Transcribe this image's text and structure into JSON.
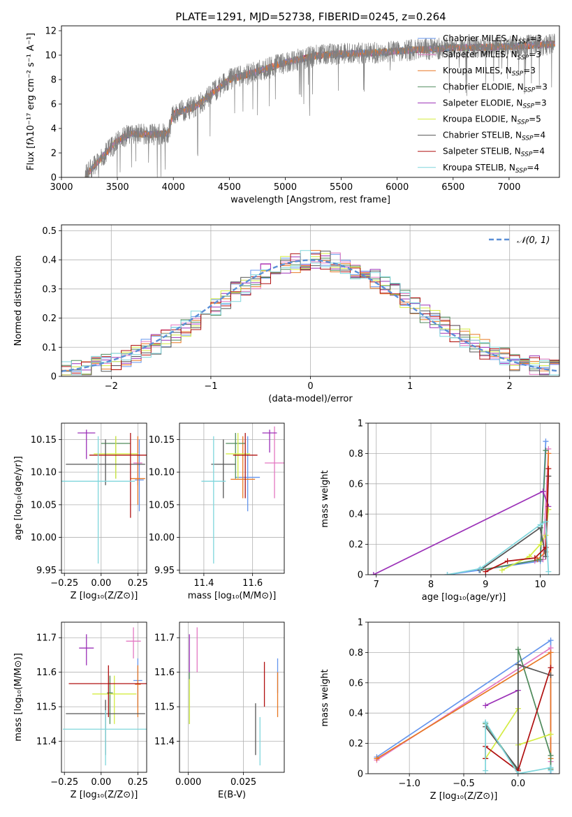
{
  "figure_title": "PLATE=1291, MJD=52738, FIBERID=0245, z=0.264",
  "models": [
    {
      "name": "Chabrier MILES",
      "nssp": "3",
      "color": "#6495ed"
    },
    {
      "name": "Salpeter MILES",
      "nssp": "3",
      "color": "#e377c2"
    },
    {
      "name": "Kroupa MILES",
      "nssp": "3",
      "color": "#e87722"
    },
    {
      "name": "Chabrier ELODIE",
      "nssp": "3",
      "color": "#4f8a5b"
    },
    {
      "name": "Salpeter ELODIE",
      "nssp": "3",
      "color": "#9b30b7"
    },
    {
      "name": "Kroupa ELODIE",
      "nssp": "5",
      "color": "#d4ec42"
    },
    {
      "name": "Chabrier STELIB",
      "nssp": "4",
      "color": "#555555"
    },
    {
      "name": "Salpeter STELIB",
      "nssp": "4",
      "color": "#b01010"
    },
    {
      "name": "Kroupa STELIB",
      "nssp": "4",
      "color": "#7fd6dc"
    }
  ],
  "chart_data": [
    {
      "id": "spectrum",
      "type": "line",
      "xlabel": "wavelength [Angstrom, rest frame]",
      "ylabel": "Flux [fλ10⁻¹⁷ erg cm⁻² s⁻¹ A⁻¹]",
      "xlim": [
        3000,
        7450
      ],
      "ylim": [
        0,
        12.4
      ],
      "xticks": [
        3000,
        3500,
        4000,
        4500,
        5000,
        5500,
        6000,
        6500,
        7000
      ],
      "yticks": [
        0,
        2,
        4,
        6,
        8,
        10,
        12
      ],
      "grid": false,
      "legend": "right",
      "continuum": {
        "x": [
          3210,
          3500,
          3620,
          3800,
          3950,
          4000,
          4200,
          4500,
          4800,
          5000,
          5300,
          5500,
          5800,
          6100,
          6500,
          7000,
          7410
        ],
        "y": [
          0.1,
          3.0,
          3.6,
          3.5,
          3.6,
          5.2,
          5.8,
          8.0,
          8.8,
          9.4,
          10.0,
          10.1,
          10.2,
          10.4,
          10.6,
          10.7,
          10.9
        ]
      }
    },
    {
      "id": "residuals",
      "type": "line",
      "xlabel": "(data-model)/error",
      "ylabel": "Normed distribution",
      "xlim": [
        -2.5,
        2.5
      ],
      "ylim": [
        0,
        0.52
      ],
      "xticks": [
        -2,
        -1,
        0,
        1,
        2
      ],
      "yticks": [
        0,
        0.1,
        0.2,
        0.3,
        0.4,
        0.5
      ],
      "grid": true,
      "legend": "top-right",
      "legend_label": "𝒩(0, 1)",
      "gauss_color": "#5b8fd6"
    },
    {
      "id": "age_Z",
      "type": "scatter",
      "xlabel": "Z [log₁₀(Z/Z⊙)]",
      "ylabel": "age  [log₁₀(age/yr)]",
      "xlim": [
        -0.27,
        0.31
      ],
      "ylim": [
        9.945,
        10.175
      ],
      "xticks": [
        -0.25,
        0.0,
        0.25
      ],
      "xticklabels": [
        "−0.25",
        "0.00",
        "0.25"
      ],
      "yticks": [
        9.95,
        10.0,
        10.05,
        10.1,
        10.15
      ],
      "yticklabels": [
        "9.95",
        "10.00",
        "10.05",
        "10.10",
        "10.15"
      ],
      "grid": true,
      "points": [
        {
          "x": 0.26,
          "y": 10.088,
          "xerr": 0.03,
          "ye": [
            10.04,
            10.15
          ]
        },
        {
          "x": 0.25,
          "y": 10.114,
          "xerr": 0.03,
          "ye": [
            10.08,
            10.15
          ]
        },
        {
          "x": 0.25,
          "y": 10.09,
          "xerr": 0.05,
          "ye": [
            10.05,
            10.155
          ]
        },
        {
          "x": 0.1,
          "y": 10.144,
          "xerr": 0.1,
          "ye": [
            10.09,
            10.155
          ]
        },
        {
          "x": -0.1,
          "y": 10.16,
          "xerr": 0.06,
          "ye": [
            10.12,
            10.165
          ]
        },
        {
          "x": 0.1,
          "y": 10.128,
          "xerr": 0.15,
          "ye": [
            10.09,
            10.155
          ]
        },
        {
          "x": 0.03,
          "y": 10.112,
          "xerr": 0.27,
          "ye": [
            10.08,
            10.15
          ]
        },
        {
          "x": 0.2,
          "y": 10.126,
          "xerr": 0.28,
          "ye": [
            10.03,
            10.16
          ]
        },
        {
          "x": -0.02,
          "y": 10.086,
          "xerr": 0.25,
          "ye": [
            9.96,
            10.155
          ]
        }
      ]
    },
    {
      "id": "age_mass",
      "type": "scatter",
      "xlabel": "mass [log₁₀(M/M⊙)]",
      "ylabel": "",
      "xlim": [
        11.3,
        11.73
      ],
      "ylim": [
        9.945,
        10.175
      ],
      "xticks": [
        11.4,
        11.6
      ],
      "xticklabels": [
        "11.4",
        "11.6"
      ],
      "yticks": [
        9.95,
        10.0,
        10.05,
        10.1,
        10.15
      ],
      "yticklabels": [
        "9.95",
        "10.00",
        "10.05",
        "10.10",
        "10.15"
      ],
      "grid": true,
      "points": [
        {
          "x": 11.58,
          "y": 10.092,
          "xerr": 0.05,
          "ye": [
            10.04,
            10.155
          ]
        },
        {
          "x": 11.69,
          "y": 10.114,
          "xerr": 0.04,
          "ye": [
            10.06,
            10.17
          ]
        },
        {
          "x": 11.56,
          "y": 10.089,
          "xerr": 0.05,
          "ye": [
            10.06,
            10.155
          ]
        },
        {
          "x": 11.53,
          "y": 10.144,
          "xerr": 0.04,
          "ye": [
            10.09,
            10.16
          ]
        },
        {
          "x": 11.67,
          "y": 10.16,
          "xerr": 0.03,
          "ye": [
            10.13,
            10.165
          ]
        },
        {
          "x": 11.54,
          "y": 10.128,
          "xerr": 0.05,
          "ye": [
            10.09,
            10.16
          ]
        },
        {
          "x": 11.48,
          "y": 10.112,
          "xerr": 0.05,
          "ye": [
            10.06,
            10.15
          ]
        },
        {
          "x": 11.57,
          "y": 10.126,
          "xerr": 0.05,
          "ye": [
            10.06,
            10.16
          ]
        },
        {
          "x": 11.44,
          "y": 10.086,
          "xerr": 0.05,
          "ye": [
            9.96,
            10.155
          ]
        }
      ]
    },
    {
      "id": "weight_age",
      "type": "line",
      "xlabel": "age  [log₁₀(age/yr)]",
      "ylabel": "mass weight",
      "xlim": [
        6.85,
        10.35
      ],
      "ylim": [
        0,
        1.0
      ],
      "xticks": [
        7,
        8,
        9,
        10
      ],
      "yticks": [
        0,
        0.2,
        0.4,
        0.6,
        0.8,
        1.0
      ],
      "grid": true,
      "series": [
        {
          "x": [
            8.3,
            8.88,
            10.0,
            10.1
          ],
          "y": [
            0.0,
            0.03,
            0.09,
            0.88
          ]
        },
        {
          "x": [
            9.9,
            10.05,
            10.15
          ],
          "y": [
            0.09,
            0.1,
            0.83
          ]
        },
        {
          "x": [
            9.95,
            10.1,
            10.15
          ],
          "y": [
            0.1,
            0.15,
            0.8
          ]
        },
        {
          "x": [
            8.9,
            10.0,
            10.1
          ],
          "y": [
            0.03,
            0.1,
            0.82
          ]
        },
        {
          "x": [
            6.95,
            10.05,
            10.15
          ],
          "y": [
            0.0,
            0.55,
            0.45
          ]
        },
        {
          "x": [
            9.3,
            9.8,
            10.0,
            10.1,
            10.15
          ],
          "y": [
            0.03,
            0.12,
            0.2,
            0.26,
            0.43
          ]
        },
        {
          "x": [
            8.9,
            10.0,
            10.1,
            10.15
          ],
          "y": [
            0.03,
            0.31,
            0.12,
            0.65
          ]
        },
        {
          "x": [
            9.0,
            9.4,
            9.9,
            10.1,
            10.15
          ],
          "y": [
            0.02,
            0.09,
            0.11,
            0.18,
            0.7
          ]
        },
        {
          "x": [
            8.3,
            8.9,
            10.0,
            10.1,
            10.15
          ],
          "y": [
            0.0,
            0.04,
            0.33,
            0.35,
            0.02
          ]
        }
      ]
    },
    {
      "id": "mass_Z",
      "type": "scatter",
      "xlabel": "Z [log₁₀(Z/Z⊙)]",
      "ylabel": "mass [log₁₀(M/M⊙)]",
      "xlim": [
        -0.27,
        0.31
      ],
      "ylim": [
        11.31,
        11.745
      ],
      "xticks": [
        -0.25,
        0.0,
        0.25
      ],
      "xticklabels": [
        "−0.25",
        "0.00",
        "0.25"
      ],
      "yticks": [
        11.4,
        11.5,
        11.6,
        11.7
      ],
      "yticklabels": [
        "11.4",
        "11.5",
        "11.6",
        "11.7"
      ],
      "grid": true,
      "points": [
        {
          "x": 0.25,
          "y": 11.576,
          "xerr": 0.03,
          "ye": [
            11.5,
            11.64
          ]
        },
        {
          "x": 0.22,
          "y": 11.69,
          "xerr": 0.05,
          "ye": [
            11.64,
            11.73
          ]
        },
        {
          "x": 0.25,
          "y": 11.565,
          "xerr": 0.02,
          "ye": [
            11.47,
            11.62
          ]
        },
        {
          "x": 0.06,
          "y": 11.54,
          "xerr": 0.02,
          "ye": [
            11.45,
            11.59
          ]
        },
        {
          "x": -0.1,
          "y": 11.67,
          "xerr": 0.05,
          "ye": [
            11.62,
            11.71
          ]
        },
        {
          "x": 0.09,
          "y": 11.537,
          "xerr": 0.15,
          "ye": [
            11.45,
            11.59
          ]
        },
        {
          "x": 0.03,
          "y": 11.48,
          "xerr": 0.27,
          "ye": [
            11.36,
            11.52
          ]
        },
        {
          "x": 0.05,
          "y": 11.567,
          "xerr": 0.27,
          "ye": [
            11.47,
            11.62
          ]
        },
        {
          "x": 0.03,
          "y": 11.435,
          "xerr": 0.29,
          "ye": [
            11.33,
            11.49
          ]
        }
      ]
    },
    {
      "id": "mass_ebv",
      "type": "scatter",
      "xlabel": "E(B-V)",
      "ylabel": "",
      "xlim": [
        -0.004,
        0.0435
      ],
      "ylim": [
        11.31,
        11.745
      ],
      "xticks": [
        0.0,
        0.025
      ],
      "xticklabels": [
        "0.000",
        "0.025"
      ],
      "yticks": [
        11.4,
        11.5,
        11.6,
        11.7
      ],
      "yticklabels": [
        "11.4",
        "11.5",
        "11.6",
        "11.7"
      ],
      "grid": true,
      "points": [
        {
          "x": 0.0405,
          "y": 11.59,
          "xerr": 0,
          "ye": [
            11.54,
            11.64
          ]
        },
        {
          "x": 0.004,
          "y": 11.67,
          "xerr": 0,
          "ye": [
            11.6,
            11.73
          ]
        },
        {
          "x": 0.0405,
          "y": 11.56,
          "xerr": 0,
          "ye": [
            11.47,
            11.6
          ]
        },
        {
          "x": 0.0005,
          "y": 11.55,
          "xerr": 0,
          "ye": [
            11.45,
            11.6
          ]
        },
        {
          "x": 0.0005,
          "y": 11.67,
          "xerr": 0,
          "ye": [
            11.6,
            11.71
          ]
        },
        {
          "x": 0.0005,
          "y": 11.52,
          "xerr": 0,
          "ye": [
            11.45,
            11.58
          ]
        },
        {
          "x": 0.0305,
          "y": 11.44,
          "xerr": 0,
          "ye": [
            11.36,
            11.51
          ]
        },
        {
          "x": 0.0345,
          "y": 11.56,
          "xerr": 0,
          "ye": [
            11.5,
            11.63
          ]
        },
        {
          "x": 0.0325,
          "y": 11.41,
          "xerr": 0,
          "ye": [
            11.33,
            11.47
          ]
        }
      ]
    },
    {
      "id": "weight_Z",
      "type": "line",
      "xlabel": "Z [log₁₀(Z/Z⊙)]",
      "ylabel": "mass weight",
      "xlim": [
        -1.38,
        0.38
      ],
      "ylim": [
        0,
        1.0
      ],
      "xticks": [
        -1.0,
        -0.5,
        0.0
      ],
      "xticklabels": [
        "−1.0",
        "−0.5",
        "0.0"
      ],
      "yticks": [
        0,
        0.2,
        0.4,
        0.6,
        0.8,
        1.0
      ],
      "grid": true,
      "series": [
        {
          "x": [
            -1.3,
            0.3,
            0.3,
            0.3
          ],
          "y": [
            0.11,
            0.88,
            0.03,
            0.0
          ]
        },
        {
          "x": [
            -1.3,
            0.3,
            0.3
          ],
          "y": [
            0.09,
            0.83,
            0.08
          ]
        },
        {
          "x": [
            -1.3,
            0.3,
            0.3
          ],
          "y": [
            0.1,
            0.8,
            0.1
          ]
        },
        {
          "x": [
            -0.3,
            0.0,
            0.0,
            0.3,
            0.3
          ],
          "y": [
            0.33,
            0.02,
            0.82,
            0.12,
            0.03
          ]
        },
        {
          "x": [
            -0.3,
            0.0,
            0.0
          ],
          "y": [
            0.45,
            0.55,
            0.0
          ]
        },
        {
          "x": [
            -0.3,
            0.0,
            0.0,
            0.0,
            0.3
          ],
          "y": [
            0.1,
            0.43,
            0.0,
            0.19,
            0.26
          ]
        },
        {
          "x": [
            -0.3,
            0.0,
            0.0,
            0.3
          ],
          "y": [
            0.31,
            0.03,
            0.72,
            0.65
          ]
        },
        {
          "x": [
            -0.3,
            -0.3,
            0.0,
            0.3
          ],
          "y": [
            0.1,
            0.18,
            0.02,
            0.7
          ]
        },
        {
          "x": [
            -0.3,
            -0.3,
            0.0,
            0.3,
            0.3
          ],
          "y": [
            0.02,
            0.34,
            0.0,
            0.04,
            0.02
          ]
        }
      ]
    }
  ]
}
